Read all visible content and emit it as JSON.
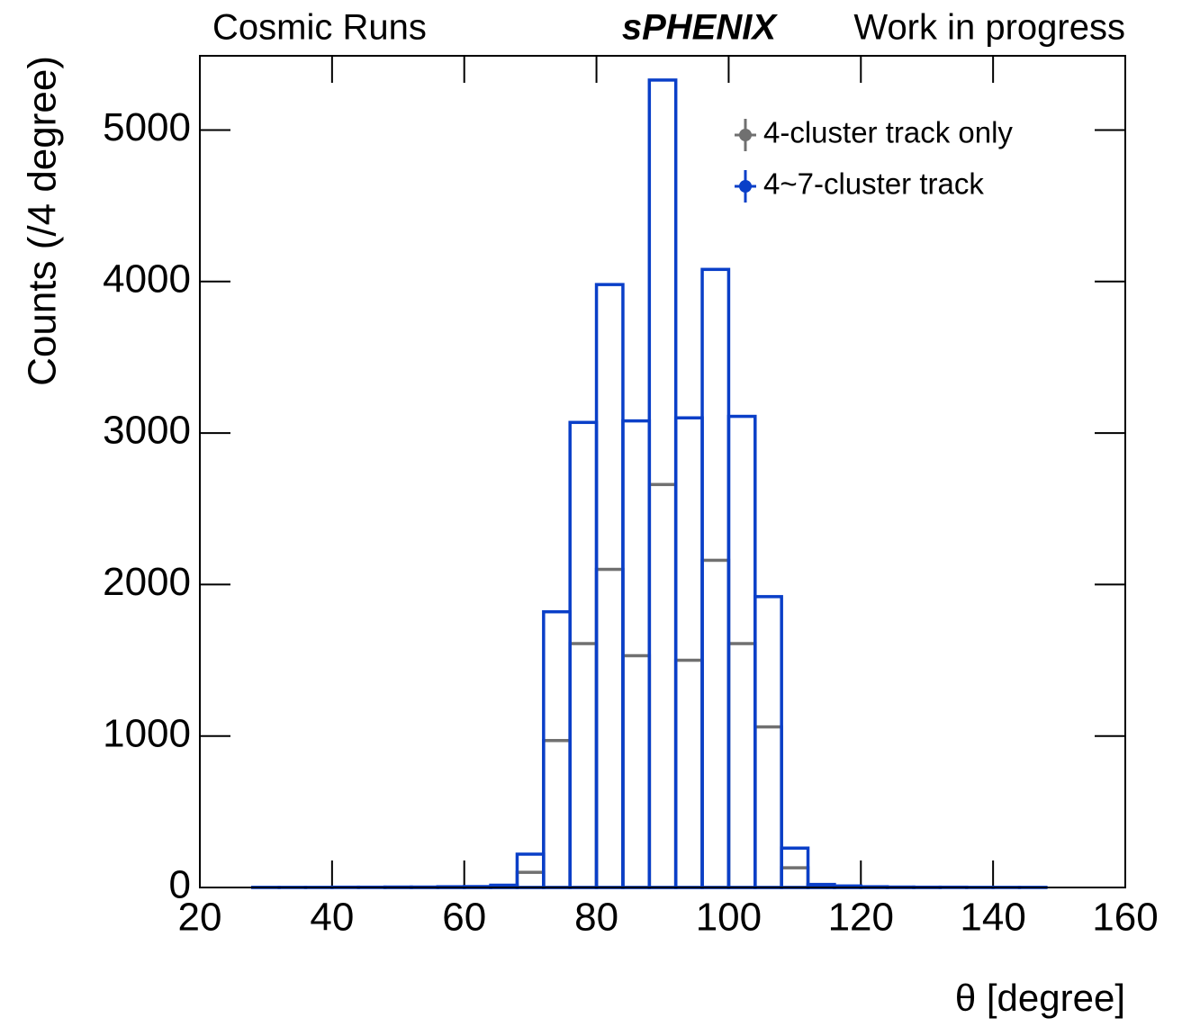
{
  "chart_data": {
    "type": "histogram",
    "title_left": "Cosmic Runs",
    "title_brand": "sPHENIX",
    "title_right": "Work in progress",
    "xlabel": "θ [degree]",
    "ylabel": "Counts (/4 degree)",
    "bins": [
      20,
      24,
      28,
      32,
      36,
      40,
      44,
      48,
      52,
      56,
      60,
      64,
      68,
      72,
      76,
      80,
      84,
      88,
      92,
      96,
      100,
      104,
      108,
      112,
      116,
      120,
      124,
      128,
      132,
      136,
      140,
      144,
      148,
      152,
      156,
      160
    ],
    "series": [
      {
        "name": "4-cluster track only",
        "color": "#707070",
        "values": [
          0,
          0,
          0,
          0,
          0,
          0,
          0,
          1,
          1,
          1,
          2,
          5,
          100,
          970,
          1610,
          2100,
          1530,
          2660,
          1500,
          2160,
          1610,
          1060,
          130,
          10,
          5,
          2,
          1,
          1,
          0,
          0,
          0,
          0,
          0,
          0,
          0
        ]
      },
      {
        "name": "4~7-cluster track",
        "color": "#0a3fc8",
        "values": [
          0,
          0,
          1,
          1,
          1,
          2,
          2,
          3,
          3,
          5,
          6,
          15,
          220,
          1820,
          3070,
          3980,
          3080,
          5330,
          3100,
          4080,
          3110,
          1920,
          260,
          20,
          10,
          5,
          3,
          2,
          2,
          1,
          1,
          1,
          0,
          0,
          0
        ]
      }
    ],
    "xlim": [
      20,
      160
    ],
    "ylim": [
      0,
      5490
    ],
    "xticks": [
      20,
      40,
      60,
      80,
      100,
      120,
      140,
      160
    ],
    "yticks": [
      0,
      1000,
      2000,
      3000,
      4000,
      5000
    ],
    "legend": "upper right"
  }
}
